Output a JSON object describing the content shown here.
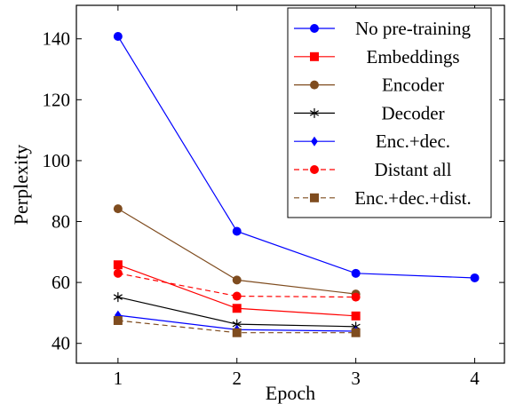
{
  "chart_data": {
    "type": "line",
    "xlabel": "Epoch",
    "ylabel": "Perplexity",
    "xlim": [
      0.65,
      4.25
    ],
    "ylim": [
      33.5,
      151
    ],
    "xticks": [
      1,
      2,
      3,
      4
    ],
    "yticks": [
      40,
      60,
      80,
      100,
      120,
      140
    ],
    "grid": false,
    "legend_position": "top-right",
    "series": [
      {
        "name": "No pre-training",
        "x": [
          1,
          2,
          3,
          4
        ],
        "values": [
          140.8,
          76.8,
          63.0,
          61.5
        ],
        "color": "#0000ff",
        "marker": "circle",
        "dash": false
      },
      {
        "name": "Embeddings",
        "x": [
          1,
          2,
          3
        ],
        "values": [
          65.8,
          51.5,
          49.0
        ],
        "color": "#ff0000",
        "marker": "square",
        "dash": false
      },
      {
        "name": "Encoder",
        "x": [
          1,
          2,
          3
        ],
        "values": [
          84.2,
          60.8,
          56.2
        ],
        "color": "#7f4c1f",
        "marker": "circle",
        "dash": false
      },
      {
        "name": "Decoder",
        "x": [
          1,
          2,
          3
        ],
        "values": [
          55.2,
          46.3,
          45.5
        ],
        "color": "#000000",
        "marker": "star",
        "dash": false
      },
      {
        "name": "Enc.+dec.",
        "x": [
          1,
          2,
          3
        ],
        "values": [
          49.2,
          44.5,
          44.0
        ],
        "color": "#0000ff",
        "marker": "diamond",
        "dash": false
      },
      {
        "name": "Distant all",
        "x": [
          1,
          2,
          3
        ],
        "values": [
          63.0,
          55.5,
          55.2
        ],
        "color": "#ff0000",
        "marker": "circle",
        "dash": true
      },
      {
        "name": "Enc.+dec.+dist.",
        "x": [
          1,
          2,
          3
        ],
        "values": [
          47.5,
          43.5,
          43.5
        ],
        "color": "#7f4c1f",
        "marker": "square",
        "dash": true
      }
    ]
  }
}
